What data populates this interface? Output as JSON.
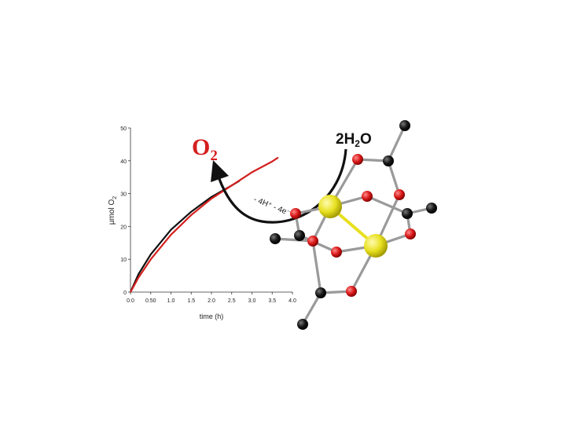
{
  "figure": {
    "product_label": "O",
    "product_sub": "2",
    "reactant_label": "2H",
    "reactant_sub": "2",
    "reactant_tail": "O",
    "arrow_label": "- 4H⁺ - 4e⁻"
  },
  "chart_data": {
    "type": "line",
    "xlabel": "time (h)",
    "ylabel": "μmol O",
    "ylabel_sub": "2",
    "xlim": [
      0,
      4
    ],
    "ylim": [
      0,
      50
    ],
    "x_ticks": [
      "0.0",
      "0.50",
      "1.0",
      "1.5",
      "2.0",
      "2.5",
      "3.0",
      "3.5",
      "4.0"
    ],
    "x_tick_values": [
      0,
      0.5,
      1,
      1.5,
      2,
      2.5,
      3,
      3.5,
      4
    ],
    "y_ticks": [
      "0",
      "10",
      "20",
      "30",
      "40",
      "50"
    ],
    "y_tick_values": [
      0,
      10,
      20,
      30,
      40,
      50
    ],
    "series": [
      {
        "color": "#111111",
        "x": [
          0,
          0.2,
          0.5,
          1.0,
          1.5,
          2.0,
          2.5,
          2.7
        ],
        "y": [
          0,
          5.5,
          11.5,
          19,
          24.5,
          29,
          32.5,
          34
        ]
      },
      {
        "color": "#d41f1f",
        "x": [
          0,
          0.2,
          0.5,
          1.0,
          1.5,
          2.0,
          2.5,
          3.0,
          3.5,
          3.65
        ],
        "y": [
          0,
          4.5,
          10,
          17.5,
          23.5,
          28.5,
          32.5,
          36.5,
          39.8,
          41
        ]
      }
    ]
  },
  "molecule": {
    "metal_color": "#e8e020",
    "oxygen_color": "#d81818",
    "carbon_color": "#111111",
    "bond_color": "#9a9a9a",
    "mm_bond_color": "#e8e020"
  }
}
